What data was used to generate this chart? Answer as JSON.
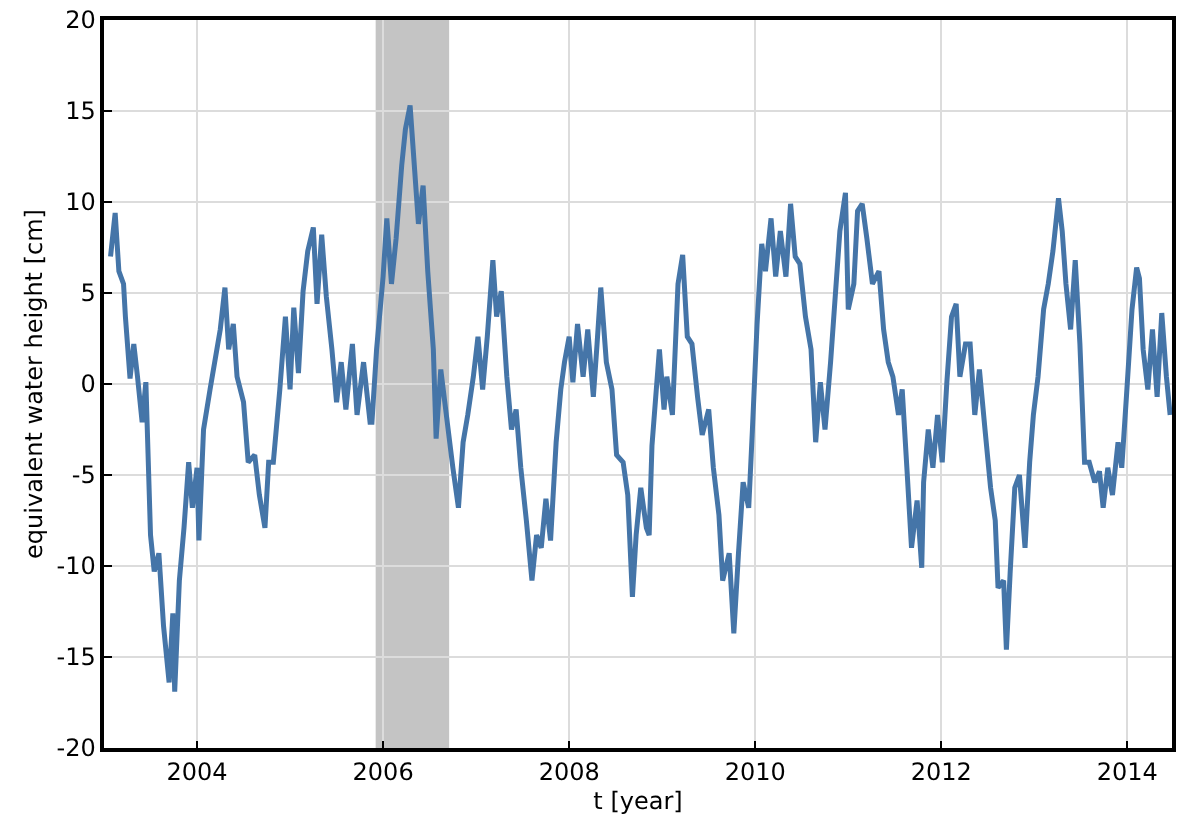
{
  "chart_data": {
    "type": "line",
    "xlabel": "t [year]",
    "ylabel": "equivalent water height [cm]",
    "xlim": [
      2003.0,
      2014.48
    ],
    "xticks": [
      2004,
      2006,
      2008,
      2010,
      2012,
      2014
    ],
    "ylim": [
      -20,
      20
    ],
    "yticks": [
      -20,
      -15,
      -10,
      -5,
      0,
      5,
      10,
      15,
      20
    ],
    "grid": true,
    "marker": "none",
    "line_style": "solid",
    "bands": [
      {
        "axis": "x",
        "from": 2005.92,
        "to": 2006.71,
        "color": "#c4c4c4"
      }
    ],
    "series": [
      {
        "color": "#4575a8",
        "x": [
          2003.07,
          2003.12,
          2003.16,
          2003.21,
          2003.23,
          2003.28,
          2003.32,
          2003.36,
          2003.41,
          2003.45,
          2003.5,
          2003.54,
          2003.59,
          2003.64,
          2003.7,
          2003.74,
          2003.76,
          2003.81,
          2003.86,
          2003.91,
          2003.95,
          2004.0,
          2004.02,
          2004.07,
          2004.14,
          2004.19,
          2004.25,
          2004.3,
          2004.34,
          2004.39,
          2004.43,
          2004.5,
          2004.55,
          2004.62,
          2004.67,
          2004.73,
          2004.77,
          2004.82,
          2004.89,
          2004.95,
          2005.0,
          2005.04,
          2005.09,
          2005.14,
          2005.19,
          2005.25,
          2005.29,
          2005.34,
          2005.39,
          2005.45,
          2005.5,
          2005.55,
          2005.6,
          2005.67,
          2005.72,
          2005.79,
          2005.86,
          2005.88,
          2005.93,
          2006.0,
          2006.04,
          2006.09,
          2006.14,
          2006.2,
          2006.24,
          2006.29,
          2006.34,
          2006.38,
          2006.43,
          2006.48,
          2006.54,
          2006.57,
          2006.62,
          2006.68,
          2006.75,
          2006.81,
          2006.86,
          2006.91,
          2006.97,
          2007.02,
          2007.07,
          2007.12,
          2007.18,
          2007.22,
          2007.27,
          2007.33,
          2007.38,
          2007.43,
          2007.48,
          2007.54,
          2007.6,
          2007.65,
          2007.7,
          2007.75,
          2007.8,
          2007.86,
          2007.91,
          2007.95,
          2008.0,
          2008.04,
          2008.09,
          2008.15,
          2008.2,
          2008.26,
          2008.3,
          2008.34,
          2008.4,
          2008.46,
          2008.51,
          2008.58,
          2008.63,
          2008.68,
          2008.72,
          2008.77,
          2008.83,
          2008.86,
          2008.89,
          2008.97,
          2009.02,
          2009.05,
          2009.11,
          2009.17,
          2009.22,
          2009.27,
          2009.32,
          2009.38,
          2009.43,
          2009.5,
          2009.55,
          2009.61,
          2009.65,
          2009.72,
          2009.77,
          2009.82,
          2009.87,
          2009.93,
          2009.97,
          2010.02,
          2010.07,
          2010.11,
          2010.17,
          2010.22,
          2010.27,
          2010.33,
          2010.38,
          2010.43,
          2010.48,
          2010.54,
          2010.6,
          2010.65,
          2010.7,
          2010.75,
          2010.81,
          2010.86,
          2010.91,
          2010.97,
          2011.0,
          2011.06,
          2011.1,
          2011.15,
          2011.2,
          2011.26,
          2011.33,
          2011.38,
          2011.43,
          2011.48,
          2011.54,
          2011.58,
          2011.63,
          2011.68,
          2011.74,
          2011.79,
          2011.81,
          2011.86,
          2011.91,
          2011.96,
          2012.01,
          2012.06,
          2012.11,
          2012.16,
          2012.2,
          2012.26,
          2012.31,
          2012.36,
          2012.41,
          2012.47,
          2012.53,
          2012.58,
          2012.61,
          2012.67,
          2012.7,
          2012.74,
          2012.79,
          2012.84,
          2012.9,
          2012.95,
          2012.99,
          2013.04,
          2013.1,
          2013.15,
          2013.2,
          2013.26,
          2013.3,
          2013.34,
          2013.39,
          2013.44,
          2013.49,
          2013.54,
          2013.59,
          2013.65,
          2013.7,
          2013.74,
          2013.79,
          2013.84,
          2013.9,
          2013.94,
          2013.99,
          2014.05,
          2014.1,
          2014.13,
          2014.17,
          2014.22,
          2014.27,
          2014.32,
          2014.37,
          2014.42,
          2014.46
        ],
        "values": [
          7.0,
          9.4,
          6.2,
          5.5,
          3.7,
          0.3,
          2.2,
          0.4,
          -2.1,
          0.1,
          -8.3,
          -10.3,
          -9.3,
          -13.3,
          -16.4,
          -12.6,
          -16.9,
          -10.8,
          -7.9,
          -4.3,
          -6.8,
          -4.6,
          -8.6,
          -2.5,
          -0.3,
          1.2,
          3.0,
          5.3,
          1.9,
          3.3,
          0.4,
          -1.0,
          -4.3,
          -3.9,
          -6.1,
          -7.9,
          -4.3,
          -4.3,
          -0.3,
          3.7,
          -0.3,
          4.2,
          0.6,
          5.1,
          7.3,
          8.6,
          4.4,
          8.2,
          4.8,
          1.9,
          -1.0,
          1.2,
          -1.4,
          2.2,
          -1.7,
          1.2,
          -2.1,
          -2.1,
          1.9,
          5.9,
          9.1,
          5.5,
          8.0,
          12.0,
          14.0,
          15.3,
          11.7,
          8.8,
          10.9,
          6.2,
          1.9,
          -3.0,
          0.8,
          -1.7,
          -4.6,
          -6.8,
          -3.2,
          -1.7,
          0.4,
          2.6,
          -0.3,
          2.6,
          6.8,
          3.7,
          5.1,
          0.4,
          -2.5,
          -1.4,
          -4.6,
          -7.5,
          -10.8,
          -8.3,
          -9.0,
          -6.3,
          -8.6,
          -3.2,
          -0.3,
          1.2,
          2.6,
          0.1,
          3.3,
          0.4,
          3.0,
          -0.7,
          2.2,
          5.3,
          1.2,
          -0.3,
          -3.9,
          -4.3,
          -6.1,
          -11.7,
          -8.3,
          -5.7,
          -7.9,
          -8.3,
          -3.4,
          1.9,
          -1.4,
          0.4,
          -1.7,
          5.5,
          7.1,
          2.6,
          2.2,
          -0.7,
          -2.8,
          -1.4,
          -4.6,
          -7.2,
          -10.8,
          -9.3,
          -13.7,
          -9.3,
          -5.4,
          -6.8,
          -2.5,
          3.3,
          7.7,
          6.2,
          9.1,
          5.9,
          8.4,
          5.9,
          9.9,
          7.0,
          6.6,
          3.7,
          1.9,
          -3.2,
          0.1,
          -2.5,
          1.2,
          4.8,
          8.4,
          10.5,
          4.1,
          5.5,
          9.5,
          9.9,
          8.0,
          5.5,
          6.2,
          3.0,
          1.2,
          0.4,
          -1.7,
          -0.3,
          -4.6,
          -9.0,
          -6.4,
          -10.1,
          -5.4,
          -2.5,
          -4.6,
          -1.7,
          -4.3,
          0.1,
          3.7,
          4.4,
          0.4,
          2.2,
          2.2,
          -1.7,
          0.8,
          -2.5,
          -5.7,
          -7.5,
          -11.2,
          -10.8,
          -14.6,
          -10.4,
          -5.7,
          -5.0,
          -9.0,
          -4.3,
          -1.7,
          0.4,
          4.1,
          5.5,
          7.3,
          10.2,
          8.4,
          5.5,
          3.0,
          6.8,
          2.2,
          -4.3,
          -4.3,
          -5.4,
          -4.8,
          -6.8,
          -4.6,
          -6.1,
          -3.2,
          -4.6,
          -0.7,
          4.1,
          6.4,
          5.8,
          1.9,
          -0.3,
          3.0,
          -0.7,
          3.9,
          0.4,
          -1.7
        ]
      }
    ]
  }
}
